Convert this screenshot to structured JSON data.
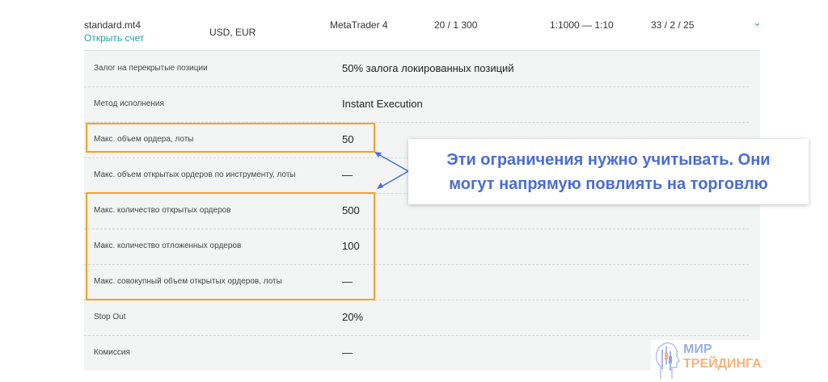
{
  "header": {
    "account": "standard.mt4",
    "open_link": "Открыть счет",
    "currencies": "USD, EUR",
    "platform": "MetaTrader 4",
    "col4": "20 / 1 300",
    "leverage": "1:1000 — 1:10",
    "col6": "33 / 2 / 25"
  },
  "rows": [
    {
      "label": "Залог на перекрытые позиции",
      "value": "50% залога локированных позиций"
    },
    {
      "label": "Метод исполнения",
      "value": "Instant Execution"
    },
    {
      "label": "Макс. объем ордера, лоты",
      "value": "50"
    },
    {
      "label": "Макс. объем открытых ордеров по инструменту, лоты",
      "value": "—"
    },
    {
      "label": "Макс. количество открытых ордеров",
      "value": "500"
    },
    {
      "label": "Макс. количество отложенных ордеров",
      "value": "100"
    },
    {
      "label": "Макс. совокупный объем открытых ордеров, лоты",
      "value": "—"
    },
    {
      "label": "Stop Out",
      "value": "20%"
    },
    {
      "label": "Комиссия",
      "value": "—"
    }
  ],
  "callout": {
    "line1": "Эти ограничения нужно учитывать. Они",
    "line2": "могут напрямую повлиять на торговлю"
  },
  "logo": {
    "line1": "МИР",
    "line2": "ТРЕЙДИНГА"
  },
  "colors": {
    "highlight": "#f5a028",
    "callout_text": "#4a6cd4",
    "link": "#2a9cb0"
  }
}
